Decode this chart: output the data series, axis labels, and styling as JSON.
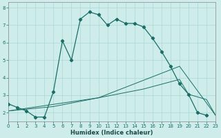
{
  "xlabel": "Humidex (Indice chaleur)",
  "bg_color": "#ceecea",
  "grid_color": "#aad8d5",
  "line_color": "#1a6e65",
  "xlim": [
    0,
    23
  ],
  "ylim": [
    1.5,
    8.3
  ],
  "xticks": [
    0,
    1,
    2,
    3,
    4,
    5,
    6,
    7,
    8,
    9,
    10,
    11,
    12,
    13,
    14,
    15,
    16,
    17,
    18,
    19,
    20,
    21,
    22,
    23
  ],
  "yticks": [
    2,
    3,
    4,
    5,
    6,
    7,
    8
  ],
  "line1_x": [
    0,
    1,
    2,
    3,
    4,
    5,
    6,
    7,
    8,
    9,
    10,
    11,
    12,
    13,
    14,
    15,
    16,
    17,
    18,
    19,
    20,
    21,
    22
  ],
  "line1_y": [
    2.5,
    2.3,
    2.1,
    1.75,
    1.75,
    3.2,
    6.1,
    5.0,
    7.35,
    7.75,
    7.6,
    7.0,
    7.35,
    7.1,
    7.1,
    6.9,
    6.25,
    5.5,
    4.65,
    3.65,
    3.05,
    2.0,
    1.85
  ],
  "line2_x": [
    0,
    5,
    10,
    15,
    19,
    20,
    22,
    23
  ],
  "line2_y": [
    2.1,
    2.35,
    2.85,
    3.35,
    3.9,
    3.05,
    2.75,
    1.85
  ],
  "line3_x": [
    0,
    10,
    19,
    23
  ],
  "line3_y": [
    2.1,
    2.85,
    4.65,
    1.85
  ]
}
